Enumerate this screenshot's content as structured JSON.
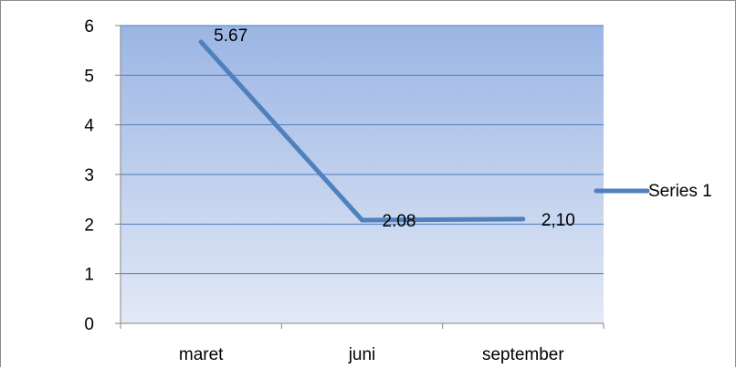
{
  "chart_data": {
    "type": "line",
    "categories": [
      "maret",
      "juni",
      "september"
    ],
    "series": [
      {
        "name": "Series 1",
        "values": [
          5.67,
          2.08,
          2.1
        ],
        "data_labels": [
          "5.67",
          "2.08",
          "2,10"
        ],
        "color": "#4f81bd"
      }
    ],
    "ylim": [
      0,
      6
    ],
    "yticks": [
      "0",
      "1",
      "2",
      "3",
      "4",
      "5",
      "6"
    ],
    "title": "",
    "xlabel": "",
    "ylabel": "",
    "grid": true,
    "legend_position": "right",
    "plot_background": {
      "top_color": "#9bb5e4",
      "bottom_color": "#e3e9f6"
    },
    "gridline_color": "#4a7ebb",
    "axis_color": "#868686"
  }
}
